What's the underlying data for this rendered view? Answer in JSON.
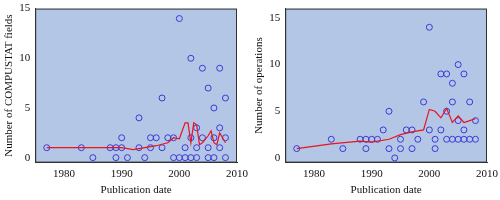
{
  "chart_data": [
    {
      "type": "scatter",
      "x_label": "Publication date",
      "y_label": "Number of COMPUSTAT fields",
      "xlim": [
        1975,
        2010
      ],
      "xticks": [
        1980,
        1990,
        2000,
        2010
      ],
      "ylim": [
        -0.5,
        15
      ],
      "yticks": [
        0,
        5,
        10,
        15
      ],
      "grid": false,
      "series": [
        {
          "type": "scatter",
          "marker": "circle",
          "color": "#3a3ad8",
          "x": [
            1977,
            1983,
            1985,
            1988,
            1989,
            1989,
            1990,
            1990,
            1991,
            1993,
            1993,
            1994,
            1995,
            1995,
            1996,
            1997,
            1997,
            1998,
            1999,
            1999,
            2000,
            2000,
            2001,
            2001,
            2002,
            2002,
            2002,
            2003,
            2003,
            2003,
            2004,
            2004,
            2005,
            2005,
            2005,
            2006,
            2006,
            2006,
            2007,
            2007,
            2007,
            2008,
            2008,
            2008
          ],
          "values": [
            1,
            1,
            0,
            1,
            1,
            0,
            1,
            2,
            0,
            4,
            1,
            0,
            2,
            1,
            2,
            6,
            1,
            2,
            2,
            0,
            14,
            0,
            1,
            0,
            10,
            2,
            0,
            3,
            1,
            0,
            9,
            2,
            7,
            1,
            0,
            5,
            2,
            0,
            9,
            3,
            1,
            6,
            2,
            0
          ]
        },
        {
          "type": "line",
          "line_style": "solid",
          "color": "#e8141e",
          "x": [
            1977,
            1983,
            1988,
            1990,
            1992,
            1994,
            1996,
            1998,
            1999,
            2000,
            2001,
            2001.5,
            2002,
            2002.5,
            2003,
            2003.5,
            2004,
            2005,
            2005.5,
            2006,
            2006.5,
            2007,
            2008
          ],
          "values": [
            1,
            1,
            1,
            1,
            0.8,
            1,
            1.2,
            1.5,
            2,
            1.9,
            3.5,
            3.5,
            1.5,
            3.5,
            3.3,
            1.3,
            1.5,
            2.2,
            2.7,
            1.5,
            1.3,
            2.5,
            1.5
          ]
        }
      ]
    },
    {
      "type": "scatter",
      "x_label": "Publication date",
      "y_label": "Number of operations",
      "xlim": [
        1975,
        2010
      ],
      "xticks": [
        1980,
        1990,
        2000,
        2010
      ],
      "ylim": [
        -0.5,
        16
      ],
      "yticks": [
        0,
        5,
        10,
        15
      ],
      "grid": false,
      "series": [
        {
          "type": "scatter",
          "marker": "circle",
          "color": "#3a3ad8",
          "x": [
            1977,
            1983,
            1985,
            1988,
            1989,
            1989,
            1990,
            1991,
            1992,
            1993,
            1993,
            1994,
            1995,
            1995,
            1996,
            1997,
            1997,
            1998,
            1999,
            2000,
            2000,
            2001,
            2001,
            2002,
            2002,
            2003,
            2003,
            2003,
            2004,
            2004,
            2004,
            2005,
            2005,
            2005,
            2006,
            2006,
            2006,
            2007,
            2007,
            2008,
            2008
          ],
          "values": [
            1,
            2,
            1,
            2,
            2,
            1,
            2,
            2,
            3,
            5,
            1,
            0,
            2,
            1,
            3,
            3,
            1,
            2,
            6,
            14,
            3,
            2,
            1,
            9,
            3,
            9,
            5,
            2,
            8,
            6,
            2,
            10,
            4,
            2,
            9,
            3,
            2,
            6,
            2,
            4,
            2
          ]
        },
        {
          "type": "line",
          "line_style": "solid",
          "color": "#e8141e",
          "x": [
            1977,
            1983,
            1988,
            1990,
            1993,
            1995,
            1997,
            1999,
            2000,
            2001,
            2002,
            2003,
            2004,
            2005,
            2006,
            2007,
            2008
          ],
          "values": [
            1,
            1.5,
            1.8,
            1.7,
            2,
            2.5,
            2.8,
            3,
            5.2,
            5,
            4.3,
            5.3,
            3.8,
            4.5,
            3.8,
            4,
            4.2
          ]
        }
      ]
    }
  ]
}
